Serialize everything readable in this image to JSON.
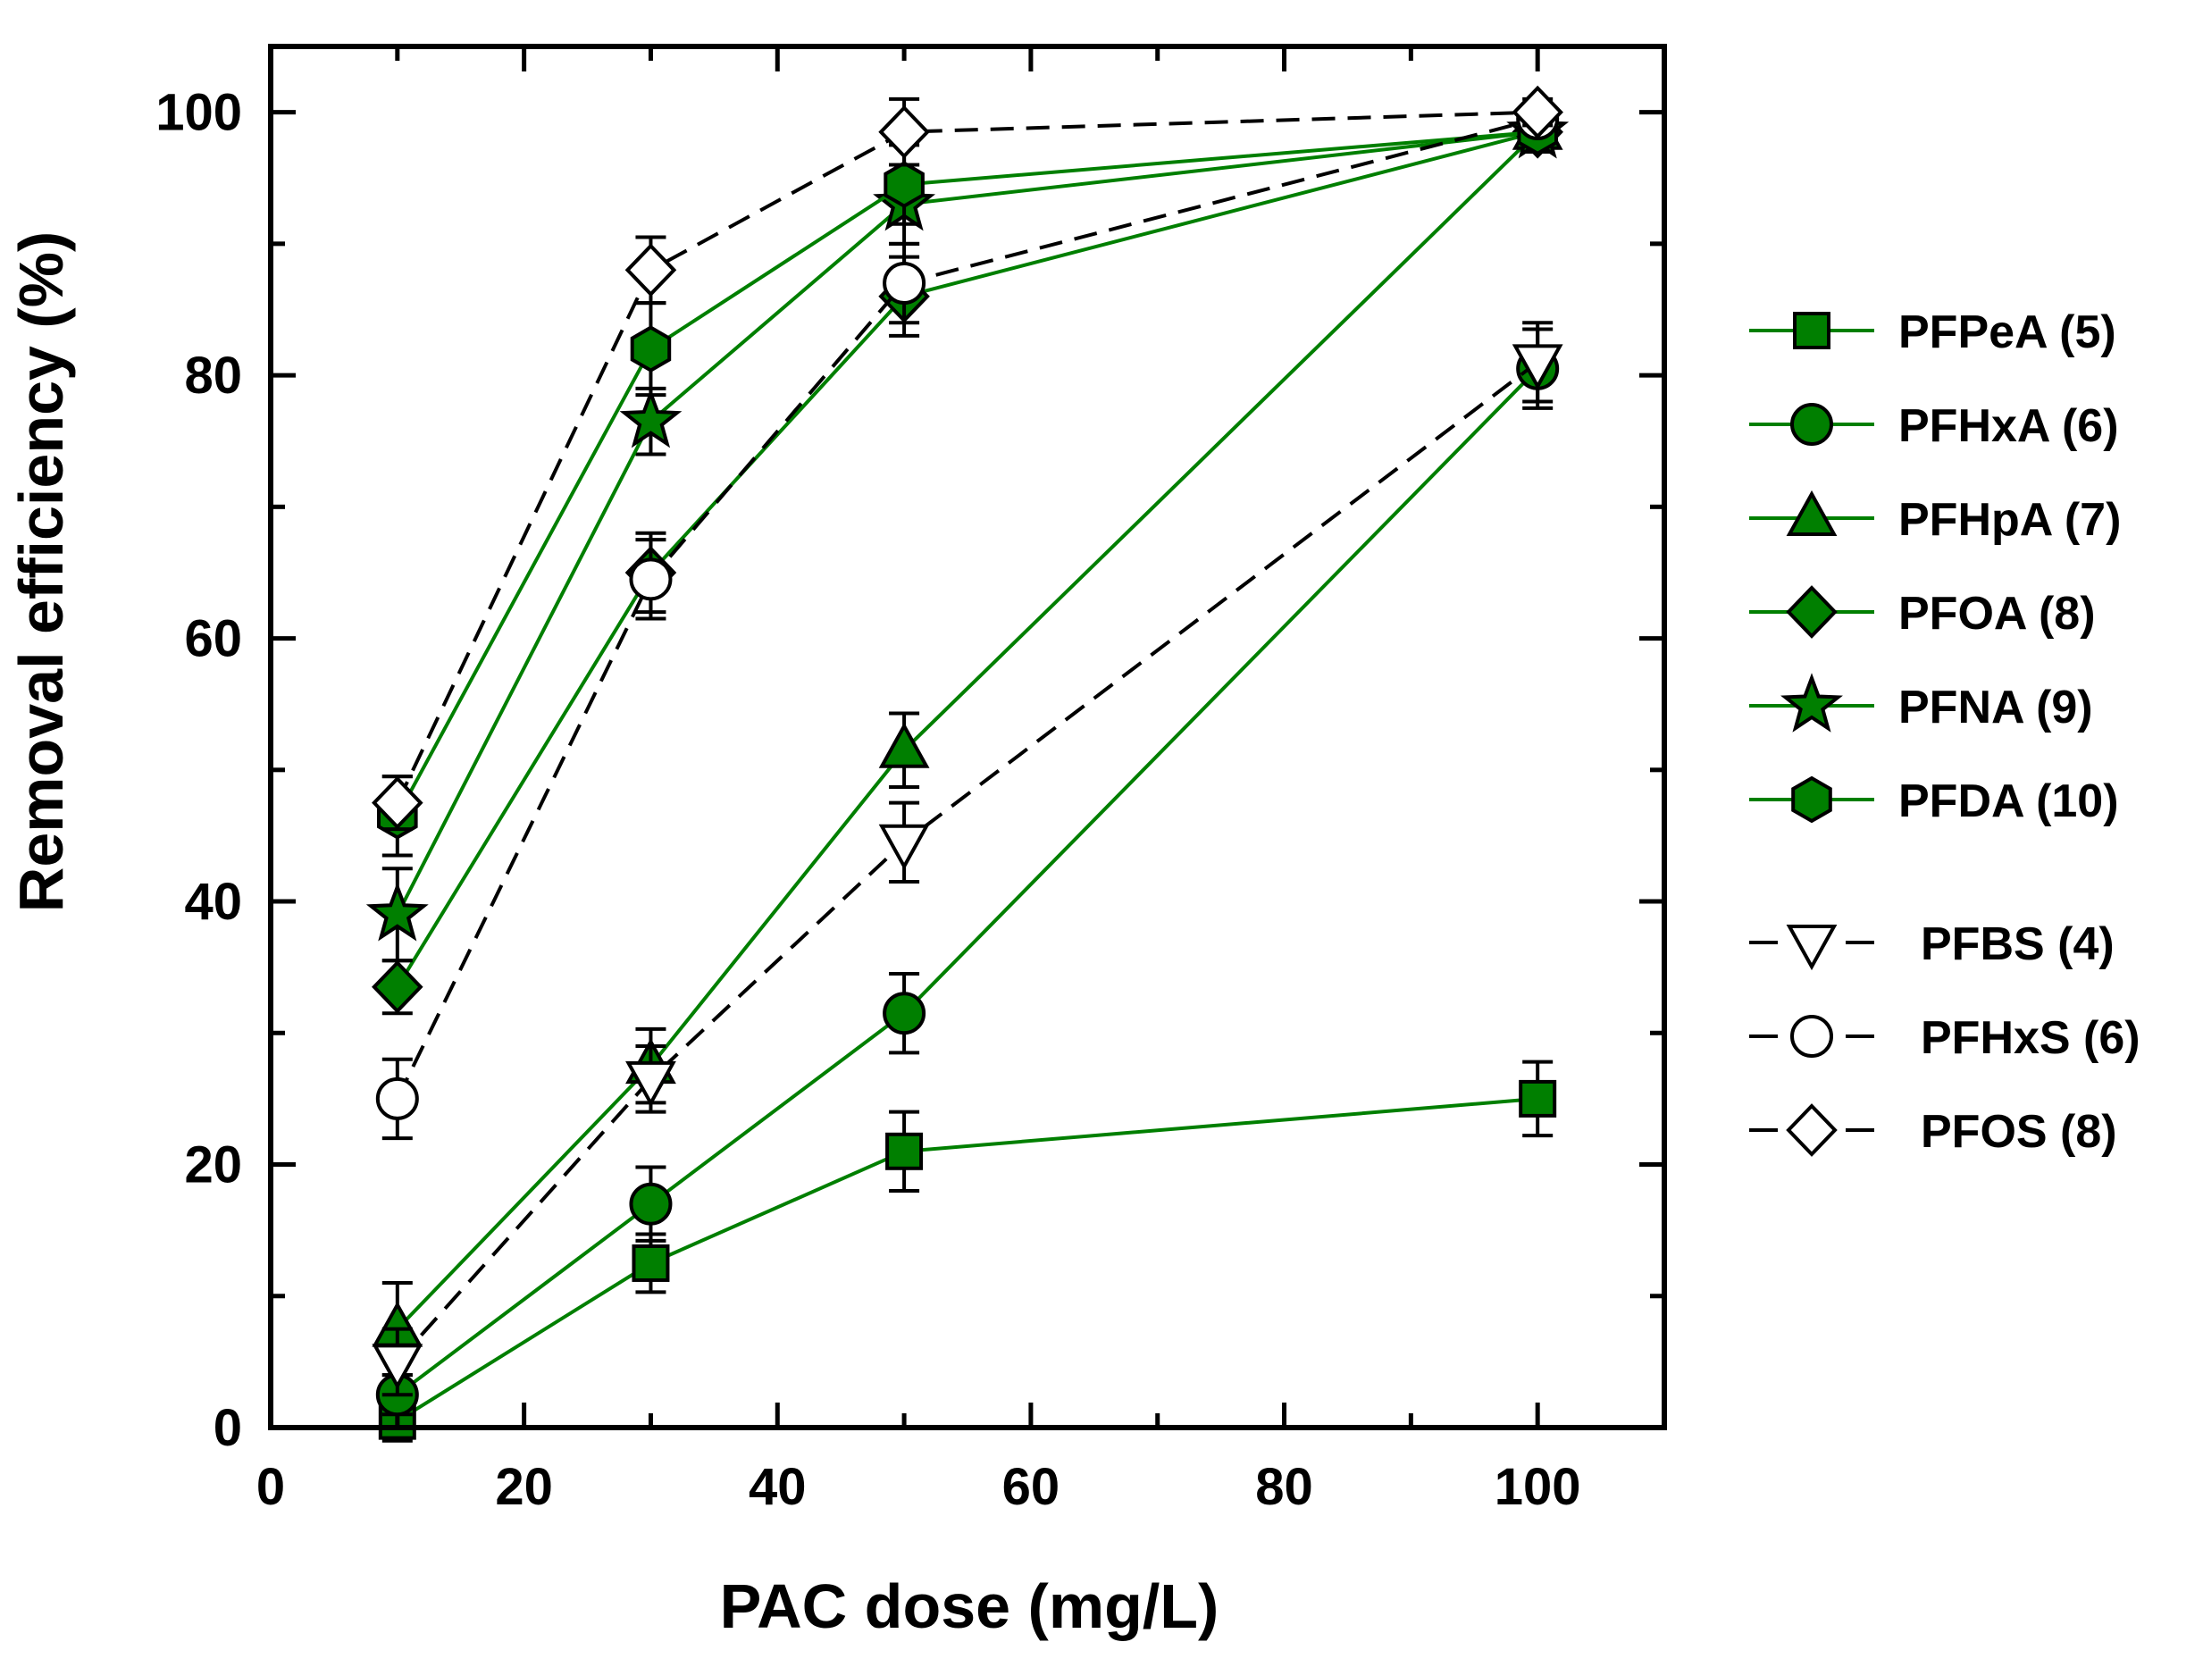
{
  "chart_data": {
    "type": "line",
    "xlabel": "PAC dose  (mg/L)",
    "ylabel": "Removal efficiency  (%)",
    "xlim": [
      0,
      110
    ],
    "ylim": [
      0,
      105
    ],
    "x_ticks": [
      0,
      20,
      40,
      60,
      80,
      100
    ],
    "y_ticks": [
      0,
      20,
      40,
      60,
      80,
      100
    ],
    "x_tick_labels": [
      "0",
      "20",
      "40",
      "60",
      "80",
      "100"
    ],
    "y_tick_labels": [
      "0",
      "20",
      "40",
      "60",
      "80",
      "100"
    ],
    "legend_position": "right",
    "green_color": "#007f00",
    "series": [
      {
        "name": "PFPeA (5)",
        "marker": "square",
        "style": "solid",
        "fill": "green",
        "x": [
          10,
          30,
          50,
          100
        ],
        "values": [
          0.5,
          12.5,
          21,
          25
        ],
        "errors": [
          1.5,
          2.2,
          3,
          2.8
        ]
      },
      {
        "name": "PFHxA (6)",
        "marker": "circle",
        "style": "solid",
        "fill": "green",
        "x": [
          10,
          30,
          50,
          100
        ],
        "values": [
          2.5,
          17,
          31.5,
          80.5
        ],
        "errors": [
          1.5,
          2.8,
          3,
          3
        ]
      },
      {
        "name": "PFHpA (7)",
        "marker": "triangle-up",
        "style": "solid",
        "fill": "green",
        "x": [
          10,
          30,
          50,
          100
        ],
        "values": [
          7.5,
          27.5,
          51.5,
          98.5
        ],
        "errors": [
          3.5,
          2.8,
          2.8,
          1.5
        ]
      },
      {
        "name": "PFOA (8)",
        "marker": "diamond",
        "style": "solid",
        "fill": "green",
        "x": [
          10,
          30,
          50,
          100
        ],
        "values": [
          33.5,
          65,
          86,
          98.5
        ],
        "errors": [
          2,
          3,
          3,
          1.5
        ]
      },
      {
        "name": "PFNA (9)",
        "marker": "star",
        "style": "solid",
        "fill": "green",
        "x": [
          10,
          30,
          50,
          100
        ],
        "values": [
          39,
          76.5,
          93,
          98.5
        ],
        "errors": [
          3.5,
          2.5,
          3,
          1.5
        ]
      },
      {
        "name": "PFDA (10)",
        "marker": "hexagon",
        "style": "solid",
        "fill": "green",
        "x": [
          10,
          30,
          50,
          100
        ],
        "values": [
          46.5,
          82,
          94.5,
          98.5
        ],
        "errors": [
          3,
          3.5,
          3,
          1.5
        ]
      },
      {
        "name": "PFBS (4)",
        "marker": "triangle-down",
        "style": "dashed",
        "fill": "white",
        "x": [
          10,
          30,
          50,
          100
        ],
        "values": [
          5,
          26.5,
          44.5,
          81
        ],
        "errors": [
          2.5,
          2.5,
          3,
          3
        ]
      },
      {
        "name": "PFHxS (6)",
        "marker": "circle",
        "style": "dashed",
        "fill": "white",
        "x": [
          10,
          30,
          50,
          100
        ],
        "values": [
          25,
          64.5,
          87,
          99.5
        ],
        "errors": [
          3,
          3,
          3,
          1
        ]
      },
      {
        "name": "PFOS (8)",
        "marker": "diamond",
        "style": "dashed",
        "fill": "white",
        "x": [
          10,
          30,
          50,
          100
        ],
        "values": [
          47.5,
          88,
          98.5,
          100
        ],
        "errors": [
          2,
          2.5,
          2.5,
          1
        ]
      }
    ]
  }
}
